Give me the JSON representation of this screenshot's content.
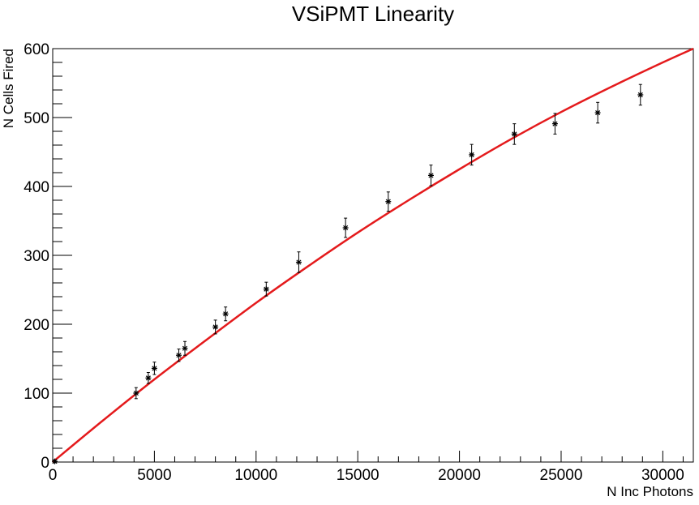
{
  "chart_data": {
    "type": "scatter",
    "title": "VSiPMT Linearity",
    "xlabel": "N Inc Photons",
    "ylabel": "N Cells Fired",
    "xlim": [
      0,
      31500
    ],
    "ylim": [
      0,
      600
    ],
    "x_ticks": [
      0,
      5000,
      10000,
      15000,
      20000,
      25000,
      30000
    ],
    "x_tick_labels": [
      "0",
      "5000",
      "10000",
      "15000",
      "20000",
      "25000",
      "30000"
    ],
    "y_ticks": [
      0,
      100,
      200,
      300,
      400,
      500,
      600
    ],
    "y_tick_labels": [
      "0",
      "100",
      "200",
      "300",
      "400",
      "500",
      "600"
    ],
    "grid": false,
    "point_color": "#000000",
    "fit_color": "#e41a1c",
    "points": [
      {
        "x": 100,
        "y": 1,
        "err": 2
      },
      {
        "x": 4100,
        "y": 100,
        "err": 8
      },
      {
        "x": 4700,
        "y": 122,
        "err": 8
      },
      {
        "x": 5000,
        "y": 136,
        "err": 9
      },
      {
        "x": 6200,
        "y": 155,
        "err": 9
      },
      {
        "x": 6500,
        "y": 165,
        "err": 10
      },
      {
        "x": 8000,
        "y": 196,
        "err": 10
      },
      {
        "x": 8500,
        "y": 215,
        "err": 10
      },
      {
        "x": 10500,
        "y": 251,
        "err": 10
      },
      {
        "x": 12100,
        "y": 290,
        "err": 15
      },
      {
        "x": 14400,
        "y": 340,
        "err": 14
      },
      {
        "x": 16500,
        "y": 378,
        "err": 14
      },
      {
        "x": 18600,
        "y": 416,
        "err": 15
      },
      {
        "x": 20600,
        "y": 446,
        "err": 15
      },
      {
        "x": 22700,
        "y": 476,
        "err": 15
      },
      {
        "x": 24700,
        "y": 491,
        "err": 15
      },
      {
        "x": 26800,
        "y": 507,
        "err": 15
      },
      {
        "x": 28900,
        "y": 533,
        "err": 15
      }
    ],
    "fit_curve": {
      "x": [
        0,
        2500,
        5000,
        7500,
        10000,
        12500,
        15000,
        17500,
        20000,
        22500,
        25000,
        27500,
        30000,
        31500
      ],
      "y": [
        0,
        61,
        120,
        176,
        231,
        283,
        333,
        380,
        425,
        468,
        508,
        545,
        580,
        600
      ]
    }
  }
}
